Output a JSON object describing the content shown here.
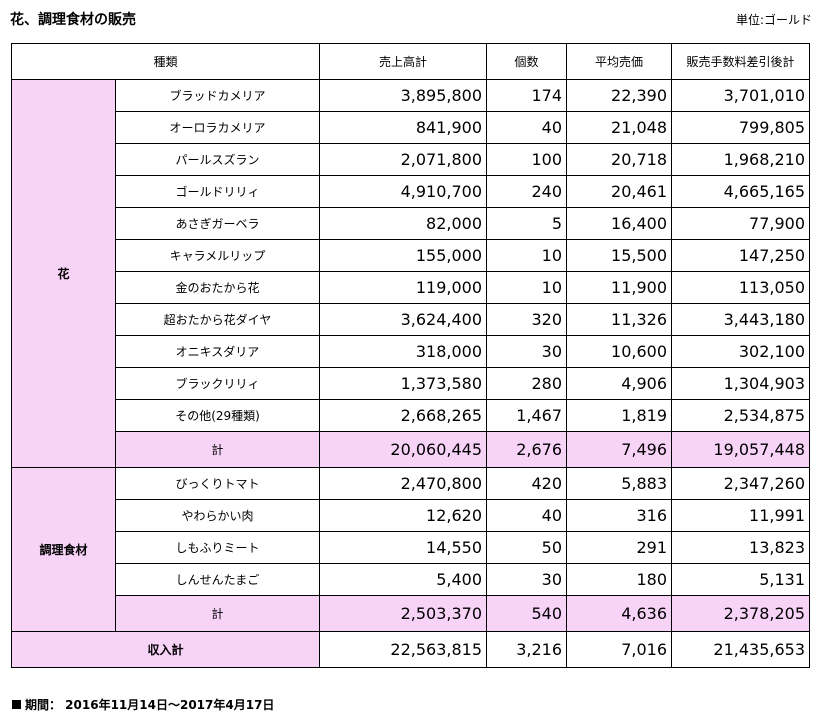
{
  "title": "花、調理食材の販売",
  "unit": "単位:ゴールド",
  "headers": [
    "種類",
    "売上高計",
    "個数",
    "平均売価",
    "販売手数料差引後計"
  ],
  "groups": [
    {
      "name": "花",
      "items": [
        {
          "name": "ブラッドカメリア",
          "sales": "3,895,800",
          "count": "174",
          "avg": "22,390",
          "net": "3,701,010"
        },
        {
          "name": "オーロラカメリア",
          "sales": "841,900",
          "count": "40",
          "avg": "21,048",
          "net": "799,805"
        },
        {
          "name": "パールスズラン",
          "sales": "2,071,800",
          "count": "100",
          "avg": "20,718",
          "net": "1,968,210"
        },
        {
          "name": "ゴールドリリィ",
          "sales": "4,910,700",
          "count": "240",
          "avg": "20,461",
          "net": "4,665,165"
        },
        {
          "name": "あさぎガーベラ",
          "sales": "82,000",
          "count": "5",
          "avg": "16,400",
          "net": "77,900"
        },
        {
          "name": "キャラメルリップ",
          "sales": "155,000",
          "count": "10",
          "avg": "15,500",
          "net": "147,250"
        },
        {
          "name": "金のおたから花",
          "sales": "119,000",
          "count": "10",
          "avg": "11,900",
          "net": "113,050"
        },
        {
          "name": "超おたから花ダイヤ",
          "sales": "3,624,400",
          "count": "320",
          "avg": "11,326",
          "net": "3,443,180"
        },
        {
          "name": "オニキスダリア",
          "sales": "318,000",
          "count": "30",
          "avg": "10,600",
          "net": "302,100"
        },
        {
          "name": "ブラックリリィ",
          "sales": "1,373,580",
          "count": "280",
          "avg": "4,906",
          "net": "1,304,903"
        },
        {
          "name": "その他(29種類)",
          "sales": "2,668,265",
          "count": "1,467",
          "avg": "1,819",
          "net": "2,534,875"
        }
      ],
      "total": {
        "label": "計",
        "sales": "20,060,445",
        "count": "2,676",
        "avg": "7,496",
        "net": "19,057,448"
      }
    },
    {
      "name": "調理食材",
      "items": [
        {
          "name": "びっくりトマト",
          "sales": "2,470,800",
          "count": "420",
          "avg": "5,883",
          "net": "2,347,260"
        },
        {
          "name": "やわらかい肉",
          "sales": "12,620",
          "count": "40",
          "avg": "316",
          "net": "11,991"
        },
        {
          "name": "しもふりミート",
          "sales": "14,550",
          "count": "50",
          "avg": "291",
          "net": "13,823"
        },
        {
          "name": "しんせんたまご",
          "sales": "5,400",
          "count": "30",
          "avg": "180",
          "net": "5,131"
        }
      ],
      "total": {
        "label": "計",
        "sales": "2,503,370",
        "count": "540",
        "avg": "4,636",
        "net": "2,378,205"
      }
    }
  ],
  "grand_total": {
    "label": "収入計",
    "sales": "22,563,815",
    "count": "3,216",
    "avg": "7,016",
    "net": "21,435,653"
  },
  "period": "期間： 2016年11月14日～2017年4月17日",
  "colors": {
    "highlight": "#f8d3f8"
  }
}
